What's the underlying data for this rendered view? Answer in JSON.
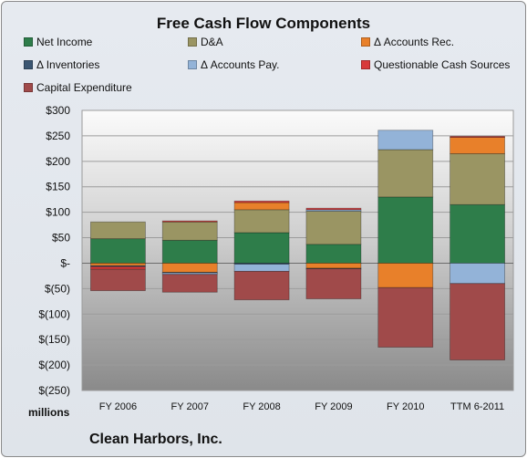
{
  "chart_data": {
    "type": "bar",
    "stacked": true,
    "title": "Free Cash Flow Components",
    "company": "Clean Harbors, Inc.",
    "ylabel": "millions",
    "xlabel": "",
    "categories": [
      "FY 2006",
      "FY 2007",
      "FY 2008",
      "FY 2009",
      "FY 2010",
      "TTM 6-2011"
    ],
    "ylim": [
      -250,
      300
    ],
    "yticks": [
      300,
      250,
      200,
      150,
      100,
      50,
      0,
      -50,
      -100,
      -150,
      -200,
      -250
    ],
    "ytick_labels": [
      "$300",
      "$250",
      "$200",
      "$150",
      "$100",
      "$50",
      "$-",
      "$(50)",
      "$(100)",
      "$(150)",
      "$(200)",
      "$(250)"
    ],
    "grid": true,
    "legend_position": "top",
    "series": [
      {
        "name": "Net Income",
        "color": "#2e7d4a",
        "values": [
          48,
          45,
          60,
          37,
          130,
          115
        ]
      },
      {
        "name": "D&A",
        "color": "#9a9563",
        "values": [
          33,
          36,
          45,
          65,
          93,
          100
        ]
      },
      {
        "name": "Δ Accounts Rec.",
        "color": "#e8802a",
        "values": [
          -5,
          -18,
          14,
          -10,
          -48,
          32
        ]
      },
      {
        "name": "Δ Inventories",
        "color": "#3b5672",
        "values": [
          -2,
          -1,
          -2,
          -1,
          0,
          0
        ]
      },
      {
        "name": "Δ Accounts Pay.",
        "color": "#93b3d8",
        "values": [
          0,
          -3,
          -14,
          3,
          38,
          -40
        ]
      },
      {
        "name": "Questionable Cash Sources",
        "color": "#d83a3a",
        "values": [
          -5,
          2,
          3,
          3,
          0,
          2
        ]
      },
      {
        "name": "Capital Expenditure",
        "color": "#a04a4a",
        "values": [
          -42,
          -35,
          -56,
          -59,
          -117,
          -150
        ]
      }
    ]
  }
}
